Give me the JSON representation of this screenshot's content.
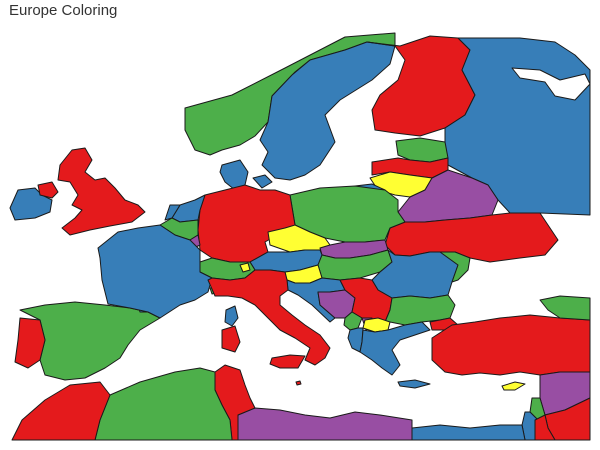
{
  "title": "Europe Coloring",
  "colors": {
    "red": "#e41a1c",
    "blue": "#377eb8",
    "green": "#4daf4a",
    "purple": "#984ea3",
    "yellow": "#ffff33"
  }
}
